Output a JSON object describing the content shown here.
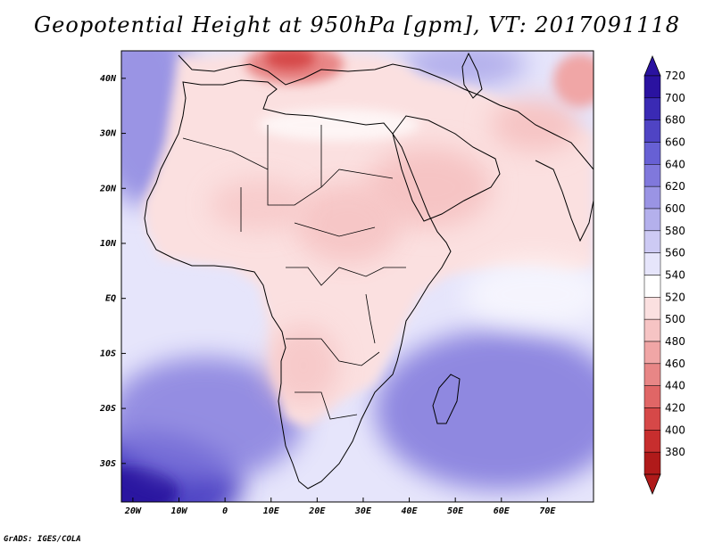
{
  "title": "Geopotential Height at 950hPa [gpm], VT: 2017091118",
  "footer": "GrADS: IGES/COLA",
  "axes": {
    "lat_labels": [
      "40N",
      "30N",
      "20N",
      "10N",
      "EQ",
      "10S",
      "20S",
      "30S"
    ],
    "lat_values": [
      40,
      30,
      20,
      10,
      0,
      -10,
      -20,
      -30
    ],
    "lon_labels": [
      "20W",
      "10W",
      "0",
      "10E",
      "20E",
      "30E",
      "40E",
      "50E",
      "60E",
      "70E"
    ],
    "lon_values": [
      -20,
      -10,
      0,
      10,
      20,
      30,
      40,
      50,
      60,
      70
    ],
    "lat_range": [
      -37,
      45
    ],
    "lon_range": [
      -22.5,
      80
    ]
  },
  "colorbar": {
    "levels": [
      "720",
      "700",
      "680",
      "660",
      "640",
      "620",
      "600",
      "580",
      "560",
      "540",
      "520",
      "500",
      "480",
      "460",
      "440",
      "420",
      "400",
      "380"
    ],
    "colors": [
      "#2a12a0",
      "#3a2ab4",
      "#4f44c4",
      "#6760d4",
      "#8078dc",
      "#9a94e4",
      "#b4b0ec",
      "#cdcaf4",
      "#e6e5fb",
      "#ffffff",
      "#fbe0e0",
      "#f6c4c4",
      "#f0a6a6",
      "#e88686",
      "#e06666",
      "#d64848",
      "#c72e2e",
      "#b01a1a"
    ]
  },
  "fields": {
    "ocean_base": "#e2e1f8",
    "land_base": "#fbe4e2"
  }
}
